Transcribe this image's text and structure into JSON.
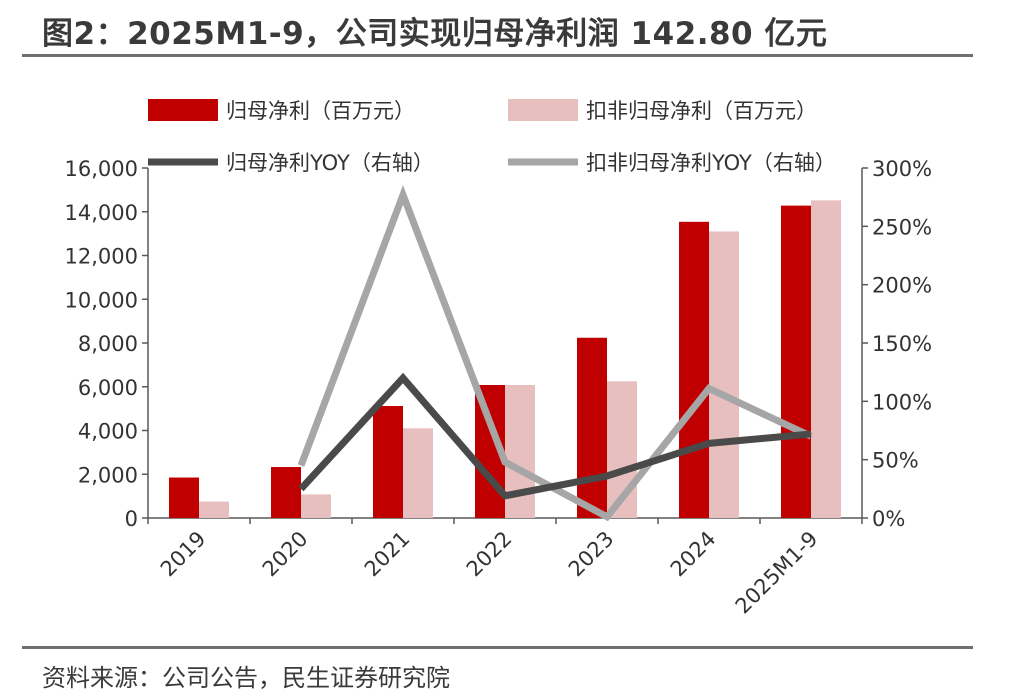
{
  "header": {
    "title": "图2：2025M1-9，公司实现归母净利润 142.80 亿元"
  },
  "footer": {
    "source": "资料来源：公司公告，民生证券研究院"
  },
  "colors": {
    "bar1": "#c00000",
    "bar2": "#e8bfbf",
    "line1": "#4a4a4a",
    "line2": "#a6a6a6",
    "axis": "#595959"
  },
  "chart_data": {
    "type": "bar",
    "categories": [
      "2019",
      "2020",
      "2021",
      "2022",
      "2023",
      "2024",
      "2025M1-9"
    ],
    "series": [
      {
        "name": "归母净利（百万元）",
        "type": "bar",
        "axis": "left",
        "values": [
          1850,
          2330,
          5120,
          6080,
          8240,
          13540,
          14280
        ]
      },
      {
        "name": "扣非归母净利（百万元）",
        "type": "bar",
        "axis": "left",
        "values": [
          750,
          1080,
          4100,
          6080,
          6250,
          13100,
          14520
        ]
      },
      {
        "name": "归母净利YOY（右轴）",
        "type": "line",
        "axis": "right",
        "values": [
          null,
          25,
          120,
          19,
          36,
          64,
          72
        ]
      },
      {
        "name": "扣非归母净利YOY（右轴）",
        "type": "line",
        "axis": "right",
        "values": [
          null,
          45,
          277,
          48,
          1,
          111,
          70
        ]
      }
    ],
    "y_left": {
      "min": 0,
      "max": 16000,
      "step": 2000,
      "tick_labels": [
        "0",
        "2,000",
        "4,000",
        "6,000",
        "8,000",
        "10,000",
        "12,000",
        "14,000",
        "16,000"
      ]
    },
    "y_right": {
      "min": 0,
      "max": 300,
      "step": 50,
      "tick_labels": [
        "0%",
        "50%",
        "100%",
        "150%",
        "200%",
        "250%",
        "300%"
      ]
    },
    "legend_position": "top",
    "grid": false
  }
}
